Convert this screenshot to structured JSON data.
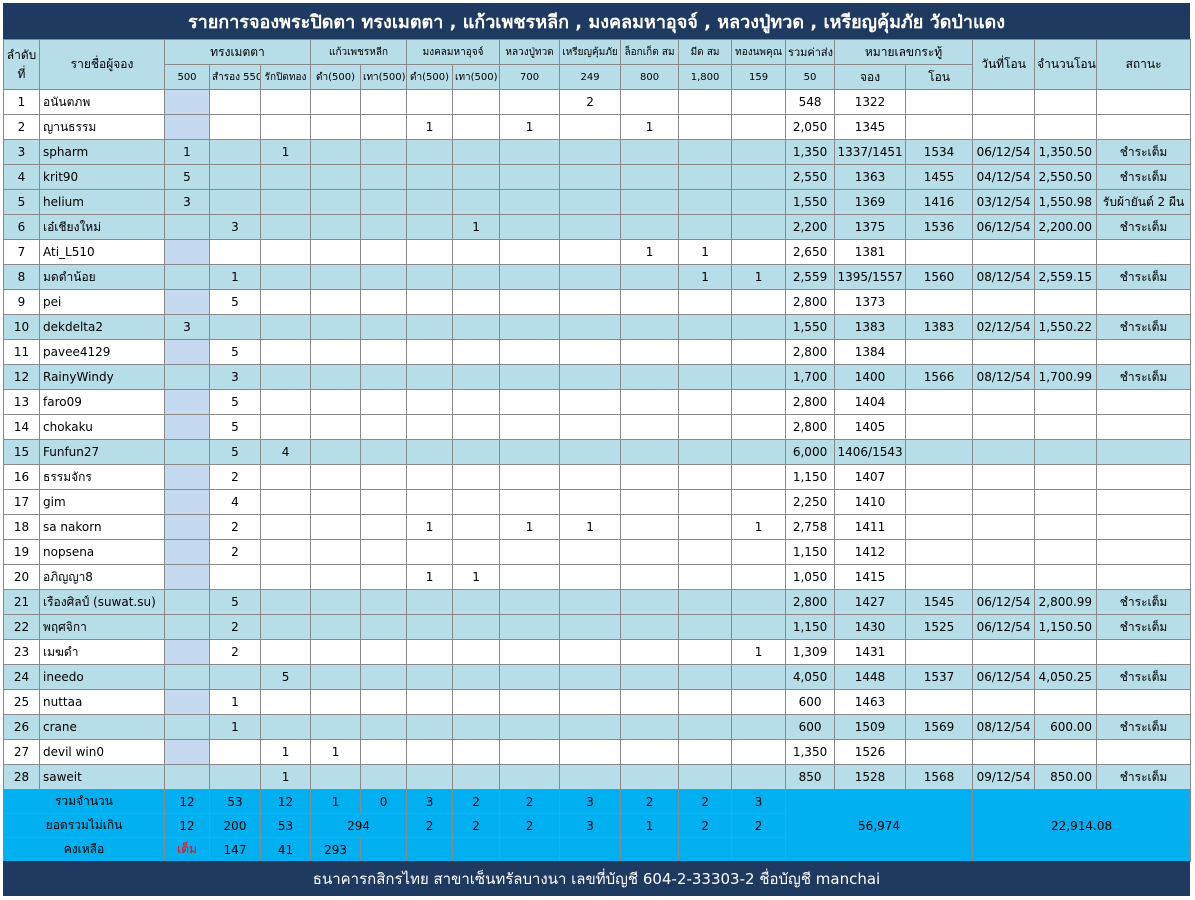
{
  "title": "รายการจองพระปิดตา ทรงเมตตา , แก้วเพชรหลีก , มงคลมหาอุจจ์ , หลวงปู่ทวด , เหรียญคุ้มภัย วัดป่าแดง",
  "footer": "ธนาคารกสิกรไทย สาขาเซ็นทรัลบางนา เลขที่บัญชี 604-2-33303-2 ชื่อบัญชี manchai",
  "headers": {
    "no_line1": "ลำดับ",
    "no_line2": "ที่",
    "name": "รายชื่อผู้จอง",
    "song": "ทรงเมตตา",
    "kaew": "แก้วเพชรหลีก",
    "mongkol": "มงคลมหาอุจจ์",
    "lpt": "หลวงปู่ทวด",
    "rien": "เหรียญคุ้มภัย",
    "locket": "ล็อกเก็ต สม",
    "meed": "มีด สม",
    "thong": "ทองนพคุณ",
    "total": "รวมค่าส่ง",
    "number_group": "หมายเลขกระทู้",
    "date": "วันที่โอน",
    "amount": "จำนวนโอน",
    "status": "สถานะ",
    "sub": {
      "s500": "500",
      "s550": "สำรอง 550",
      "sgold": "รักปิดทอง",
      "k_black": "ดำ(500)",
      "k_gray": "เทา(500)",
      "m_black": "ดำ(500)",
      "m_gray": "เทา(500)",
      "lpt": "700",
      "rien": "249",
      "locket": "800",
      "meed": "1,800",
      "thong": "159",
      "total": "50",
      "book": "จอง",
      "transfer": "โอน"
    }
  },
  "rows": [
    {
      "no": "1",
      "name": "อนันตภพ",
      "c": [
        "",
        "",
        "",
        "",
        "",
        "",
        "",
        "",
        "2",
        "",
        "",
        "",
        ""
      ],
      "total": "548",
      "book": "1322",
      "transfer": "",
      "date": "",
      "amount": "",
      "status": ""
    },
    {
      "no": "2",
      "name": "ญานธรรม",
      "c": [
        "",
        "",
        "",
        "",
        "",
        "1",
        "",
        "1",
        "",
        "1",
        "",
        "",
        ""
      ],
      "total": "2,050",
      "book": "1345",
      "transfer": "",
      "date": "",
      "amount": "",
      "status": ""
    },
    {
      "no": "3",
      "name": "spharm",
      "c": [
        "1",
        "",
        "1",
        "",
        "",
        "",
        "",
        "",
        "",
        "",
        "",
        "",
        ""
      ],
      "total": "1,350",
      "book": "1337/1451",
      "transfer": "1534",
      "date": "06/12/54",
      "amount": "1,350.50",
      "status": "ชำระเต็ม"
    },
    {
      "no": "4",
      "name": "krit90",
      "c": [
        "5",
        "",
        "",
        "",
        "",
        "",
        "",
        "",
        "",
        "",
        "",
        "",
        ""
      ],
      "total": "2,550",
      "book": "1363",
      "transfer": "1455",
      "date": "04/12/54",
      "amount": "2,550.50",
      "status": "ชำระเต็ม"
    },
    {
      "no": "5",
      "name": "helium",
      "c": [
        "3",
        "",
        "",
        "",
        "",
        "",
        "",
        "",
        "",
        "",
        "",
        "",
        ""
      ],
      "total": "1,550",
      "book": "1369",
      "transfer": "1416",
      "date": "03/12/54",
      "amount": "1,550.98",
      "status": "รับผ้ายันต์ 2 ผืน"
    },
    {
      "no": "6",
      "name": "เอ๋เชียงใหม่",
      "c": [
        "",
        "3",
        "",
        "",
        "",
        "",
        "1",
        "",
        "",
        "",
        "",
        "",
        ""
      ],
      "total": "2,200",
      "book": "1375",
      "transfer": "1536",
      "date": "06/12/54",
      "amount": "2,200.00",
      "status": "ชำระเต็ม"
    },
    {
      "no": "7",
      "name": "Ati_L510",
      "c": [
        "",
        "",
        "",
        "",
        "",
        "",
        "",
        "",
        "",
        "1",
        "1",
        "",
        ""
      ],
      "total": "2,650",
      "book": "1381",
      "transfer": "",
      "date": "",
      "amount": "",
      "status": ""
    },
    {
      "no": "8",
      "name": "มดดำน้อย",
      "c": [
        "",
        "1",
        "",
        "",
        "",
        "",
        "",
        "",
        "",
        "",
        "1",
        "1",
        ""
      ],
      "total": "2,559",
      "book": "1395/1557",
      "transfer": "1560",
      "date": "08/12/54",
      "amount": "2,559.15",
      "status": "ชำระเต็ม"
    },
    {
      "no": "9",
      "name": "pei",
      "c": [
        "",
        "5",
        "",
        "",
        "",
        "",
        "",
        "",
        "",
        "",
        "",
        "",
        ""
      ],
      "total": "2,800",
      "book": "1373",
      "transfer": "",
      "date": "",
      "amount": "",
      "status": ""
    },
    {
      "no": "10",
      "name": "dekdelta2",
      "c": [
        "3",
        "",
        "",
        "",
        "",
        "",
        "",
        "",
        "",
        "",
        "",
        "",
        ""
      ],
      "total": "1,550",
      "book": "1383",
      "transfer": "1383",
      "date": "02/12/54",
      "amount": "1,550.22",
      "status": "ชำระเต็ม"
    },
    {
      "no": "11",
      "name": "pavee4129",
      "c": [
        "",
        "5",
        "",
        "",
        "",
        "",
        "",
        "",
        "",
        "",
        "",
        "",
        ""
      ],
      "total": "2,800",
      "book": "1384",
      "transfer": "",
      "date": "",
      "amount": "",
      "status": ""
    },
    {
      "no": "12",
      "name": "RainyWindy",
      "c": [
        "",
        "3",
        "",
        "",
        "",
        "",
        "",
        "",
        "",
        "",
        "",
        "",
        ""
      ],
      "total": "1,700",
      "book": "1400",
      "transfer": "1566",
      "date": "08/12/54",
      "amount": "1,700.99",
      "status": "ชำระเต็ม"
    },
    {
      "no": "13",
      "name": "faro09",
      "c": [
        "",
        "5",
        "",
        "",
        "",
        "",
        "",
        "",
        "",
        "",
        "",
        "",
        ""
      ],
      "total": "2,800",
      "book": "1404",
      "transfer": "",
      "date": "",
      "amount": "",
      "status": ""
    },
    {
      "no": "14",
      "name": "chokaku",
      "c": [
        "",
        "5",
        "",
        "",
        "",
        "",
        "",
        "",
        "",
        "",
        "",
        "",
        ""
      ],
      "total": "2,800",
      "book": "1405",
      "transfer": "",
      "date": "",
      "amount": "",
      "status": ""
    },
    {
      "no": "15",
      "name": "Funfun27",
      "c": [
        "",
        "5",
        "4",
        "",
        "",
        "",
        "",
        "",
        "",
        "",
        "",
        "",
        ""
      ],
      "total": "6,000",
      "book": "1406/1543",
      "transfer": "",
      "date": "",
      "amount": "",
      "status": ""
    },
    {
      "no": "16",
      "name": "ธรรมจักร",
      "c": [
        "",
        "2",
        "",
        "",
        "",
        "",
        "",
        "",
        "",
        "",
        "",
        "",
        ""
      ],
      "total": "1,150",
      "book": "1407",
      "transfer": "",
      "date": "",
      "amount": "",
      "status": ""
    },
    {
      "no": "17",
      "name": "gim",
      "c": [
        "",
        "4",
        "",
        "",
        "",
        "",
        "",
        "",
        "",
        "",
        "",
        "",
        ""
      ],
      "total": "2,250",
      "book": "1410",
      "transfer": "",
      "date": "",
      "amount": "",
      "status": ""
    },
    {
      "no": "18",
      "name": "sa nakorn",
      "c": [
        "",
        "2",
        "",
        "",
        "",
        "1",
        "",
        "1",
        "1",
        "",
        "",
        "1",
        ""
      ],
      "total": "2,758",
      "book": "1411",
      "transfer": "",
      "date": "",
      "amount": "",
      "status": ""
    },
    {
      "no": "19",
      "name": "nopsena",
      "c": [
        "",
        "2",
        "",
        "",
        "",
        "",
        "",
        "",
        "",
        "",
        "",
        "",
        ""
      ],
      "total": "1,150",
      "book": "1412",
      "transfer": "",
      "date": "",
      "amount": "",
      "status": ""
    },
    {
      "no": "20",
      "name": "อภิญญา8",
      "c": [
        "",
        "",
        "",
        "",
        "",
        "1",
        "1",
        "",
        "",
        "",
        "",
        "",
        ""
      ],
      "total": "1,050",
      "book": "1415",
      "transfer": "",
      "date": "",
      "amount": "",
      "status": ""
    },
    {
      "no": "21",
      "name": "เรืองศิลป์ (suwat.su)",
      "c": [
        "",
        "5",
        "",
        "",
        "",
        "",
        "",
        "",
        "",
        "",
        "",
        "",
        ""
      ],
      "total": "2,800",
      "book": "1427",
      "transfer": "1545",
      "date": "06/12/54",
      "amount": "2,800.99",
      "status": "ชำระเต็ม"
    },
    {
      "no": "22",
      "name": "พฤศจิกา",
      "c": [
        "",
        "2",
        "",
        "",
        "",
        "",
        "",
        "",
        "",
        "",
        "",
        "",
        ""
      ],
      "total": "1,150",
      "book": "1430",
      "transfer": "1525",
      "date": "06/12/54",
      "amount": "1,150.50",
      "status": "ชำระเต็ม"
    },
    {
      "no": "23",
      "name": "เมฆดำ",
      "c": [
        "",
        "2",
        "",
        "",
        "",
        "",
        "",
        "",
        "",
        "",
        "",
        "1",
        ""
      ],
      "total": "1,309",
      "book": "1431",
      "transfer": "",
      "date": "",
      "amount": "",
      "status": ""
    },
    {
      "no": "24",
      "name": "ineedo",
      "c": [
        "",
        "",
        "5",
        "",
        "",
        "",
        "",
        "",
        "",
        "",
        "",
        "",
        ""
      ],
      "total": "4,050",
      "book": "1448",
      "transfer": "1537",
      "date": "06/12/54",
      "amount": "4,050.25",
      "status": "ชำระเต็ม"
    },
    {
      "no": "25",
      "name": "nuttaa",
      "c": [
        "",
        "1",
        "",
        "",
        "",
        "",
        "",
        "",
        "",
        "",
        "",
        "",
        ""
      ],
      "total": "600",
      "book": "1463",
      "transfer": "",
      "date": "",
      "amount": "",
      "status": ""
    },
    {
      "no": "26",
      "name": "crane",
      "c": [
        "",
        "1",
        "",
        "",
        "",
        "",
        "",
        "",
        "",
        "",
        "",
        "",
        ""
      ],
      "total": "600",
      "book": "1509",
      "transfer": "1569",
      "date": "08/12/54",
      "amount": "600.00",
      "status": "ชำระเต็ม"
    },
    {
      "no": "27",
      "name": "devil win0",
      "c": [
        "",
        "",
        "1",
        "1",
        "",
        "",
        "",
        "",
        "",
        "",
        "",
        "",
        ""
      ],
      "total": "1,350",
      "book": "1526",
      "transfer": "",
      "date": "",
      "amount": "",
      "status": ""
    },
    {
      "no": "28",
      "name": "saweit",
      "c": [
        "",
        "",
        "1",
        "",
        "",
        "",
        "",
        "",
        "",
        "",
        "",
        "",
        ""
      ],
      "total": "850",
      "book": "1528",
      "transfer": "1568",
      "date": "09/12/54",
      "amount": "850.00",
      "status": "ชำระเต็ม"
    }
  ],
  "summary": {
    "count_label": "รวมจำนวน",
    "count": [
      "12",
      "53",
      "12",
      "1",
      "0",
      "3",
      "2",
      "2",
      "3",
      "2",
      "2",
      "3"
    ],
    "limit_label": "ยอดรวมไม่เกิน",
    "limit": [
      "12",
      "200",
      "53",
      "294",
      "2",
      "2",
      "2",
      "3",
      "1",
      "2",
      "2"
    ],
    "left_label": "คงเหลือ",
    "left": [
      "เต็ม",
      "147",
      "41",
      "293"
    ],
    "grand_total": "56,974",
    "grand_transfer": "22,914.08"
  }
}
